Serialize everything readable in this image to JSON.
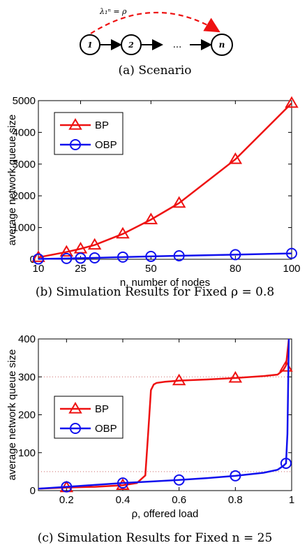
{
  "scenario": {
    "annotation": "λ₁ⁿ = ρ",
    "nodes": [
      "1",
      "2",
      "n"
    ],
    "ellipsis": "...",
    "caption": "(a) Scenario"
  },
  "chart_data": [
    {
      "type": "line",
      "caption": "(b) Simulation Results for Fixed ρ = 0.8",
      "xlabel": "n, number of nodes",
      "ylabel": "average network queue size",
      "xlim": [
        10,
        100
      ],
      "ylim": [
        0,
        5000
      ],
      "xticks": [
        10,
        25,
        50,
        80,
        100
      ],
      "yticks": [
        0,
        1000,
        2000,
        3000,
        4000,
        5000
      ],
      "legend_position": "top-left",
      "series": [
        {
          "name": "BP",
          "color": "#ee1111",
          "marker": "triangle",
          "x": [
            10,
            20,
            25,
            30,
            40,
            50,
            60,
            80,
            100
          ],
          "y": [
            60,
            230,
            330,
            450,
            800,
            1250,
            1770,
            3150,
            4920
          ]
        },
        {
          "name": "OBP",
          "color": "#1111ee",
          "marker": "circle",
          "x": [
            10,
            20,
            25,
            30,
            40,
            50,
            60,
            80,
            100
          ],
          "y": [
            10,
            25,
            35,
            45,
            70,
            90,
            110,
            145,
            185
          ]
        }
      ]
    },
    {
      "type": "line",
      "caption": "(c) Simulation Results for Fixed n = 25",
      "xlabel": "ρ, offered load",
      "ylabel": "average network queue size",
      "xlim": [
        0.1,
        1.0
      ],
      "ylim": [
        0,
        400
      ],
      "xticks": [
        0.2,
        0.4,
        0.6,
        0.8,
        1
      ],
      "yticks": [
        0,
        100,
        200,
        300,
        400
      ],
      "reference_lines": [
        300,
        50
      ],
      "legend_position": "middle-left",
      "series": [
        {
          "name": "BP",
          "color": "#ee1111",
          "marker": "triangle",
          "x": [
            0.1,
            0.2,
            0.3,
            0.4,
            0.45,
            0.48,
            0.49,
            0.5,
            0.51,
            0.52,
            0.55,
            0.6,
            0.7,
            0.8,
            0.9,
            0.95,
            0.97,
            0.98,
            0.99
          ],
          "y": [
            5,
            8,
            10,
            14,
            20,
            40,
            150,
            265,
            280,
            284,
            287,
            290,
            293,
            297,
            302,
            306,
            318,
            330,
            400
          ],
          "marker_x": [
            0.2,
            0.4,
            0.6,
            0.8,
            0.98
          ],
          "marker_y": [
            8,
            14,
            290,
            297,
            326
          ]
        },
        {
          "name": "OBP",
          "color": "#1111ee",
          "marker": "circle",
          "x": [
            0.1,
            0.2,
            0.3,
            0.4,
            0.5,
            0.6,
            0.7,
            0.8,
            0.9,
            0.95,
            0.97,
            0.98,
            0.985,
            0.99
          ],
          "y": [
            5,
            10,
            15,
            20,
            24,
            28,
            33,
            39,
            47,
            55,
            65,
            72,
            150,
            400
          ],
          "marker_x": [
            0.2,
            0.4,
            0.6,
            0.8,
            0.98
          ],
          "marker_y": [
            10,
            20,
            28,
            39,
            72
          ]
        }
      ]
    }
  ]
}
